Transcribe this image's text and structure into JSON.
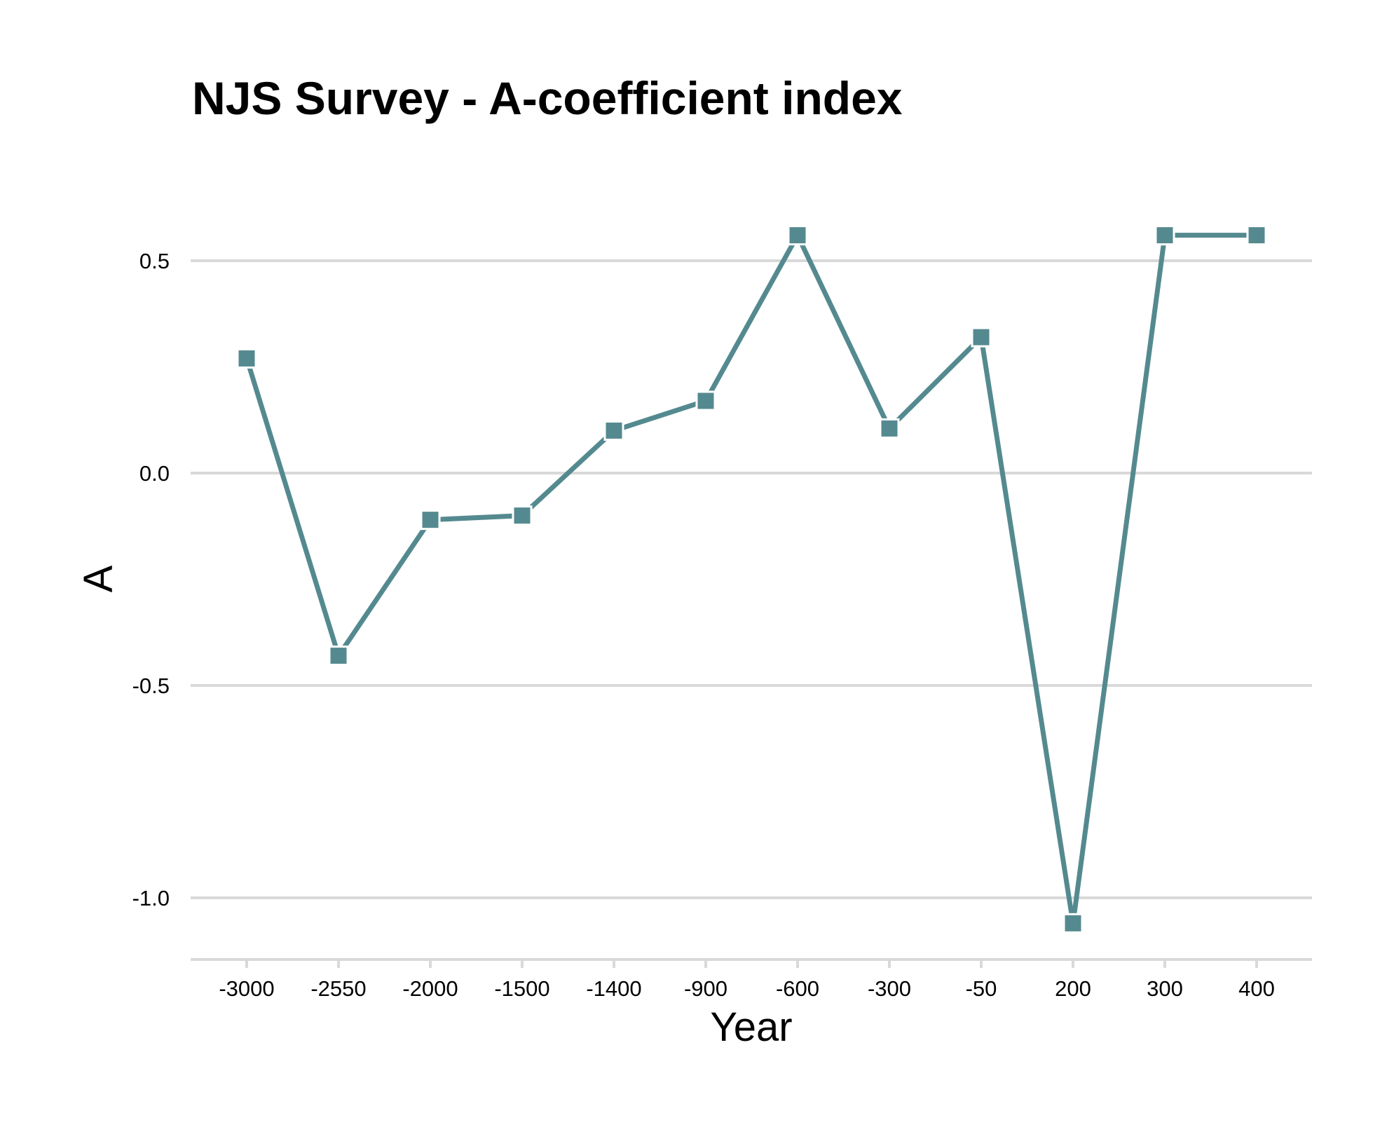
{
  "chart_data": {
    "type": "line",
    "title": "NJS Survey -  A-coefficient index",
    "xlabel": "Year",
    "ylabel": "A",
    "categories": [
      "-3000",
      "-2550",
      "-2000",
      "-1500",
      "-1400",
      "-900",
      "-600",
      "-300",
      "-50",
      "200",
      "300",
      "400"
    ],
    "series": [
      {
        "values": [
          0.27,
          -0.43,
          -0.11,
          -0.1,
          0.1,
          0.17,
          0.56,
          0.105,
          0.32,
          -1.06,
          0.56,
          0.56
        ]
      }
    ],
    "yticks": [
      0.5,
      0.0,
      -0.5,
      -1.0
    ],
    "ytick_labels": [
      "0.5",
      "0.0",
      "-0.5",
      "-1.0"
    ],
    "ylim": [
      -1.15,
      0.65
    ],
    "grid": "horizontal",
    "color": "#548a8f"
  }
}
